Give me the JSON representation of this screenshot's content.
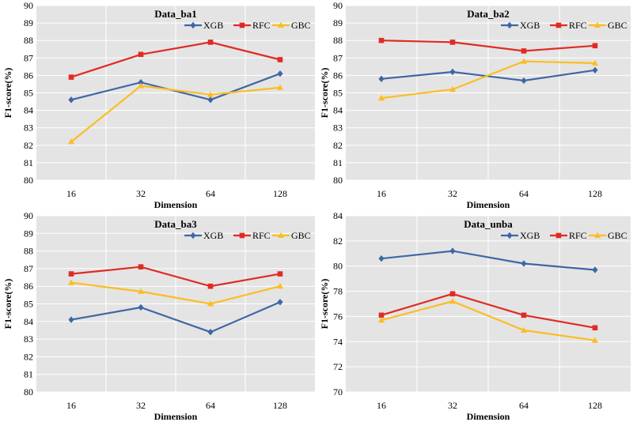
{
  "chart_data": [
    {
      "type": "line",
      "title": "Data_ba1",
      "xlabel": "Dimension",
      "ylabel": "F1-score(%)",
      "categories": [
        "16",
        "32",
        "64",
        "128"
      ],
      "ylim": [
        80,
        90
      ],
      "yticks": [
        "80",
        "81",
        "82",
        "83",
        "84",
        "85",
        "86",
        "87",
        "88",
        "89",
        "90"
      ],
      "grid": true,
      "legend": "top-right",
      "series": [
        {
          "name": "XGB",
          "color": "#3f67a6",
          "marker": "diamond",
          "values": [
            84.6,
            85.6,
            84.6,
            86.1
          ]
        },
        {
          "name": "RFC",
          "color": "#e02b24",
          "marker": "square",
          "values": [
            85.9,
            87.2,
            87.9,
            86.9
          ]
        },
        {
          "name": "GBC",
          "color": "#fbbd22",
          "marker": "triangle",
          "values": [
            82.2,
            85.4,
            84.9,
            85.3
          ]
        }
      ]
    },
    {
      "type": "line",
      "title": "Data_ba2",
      "xlabel": "Dimension",
      "ylabel": "F1-score(%)",
      "categories": [
        "16",
        "32",
        "64",
        "128"
      ],
      "ylim": [
        80,
        90
      ],
      "yticks": [
        "80",
        "81",
        "82",
        "83",
        "84",
        "85",
        "86",
        "87",
        "88",
        "89",
        "90"
      ],
      "grid": true,
      "legend": "top-right",
      "series": [
        {
          "name": "XGB",
          "color": "#3f67a6",
          "marker": "diamond",
          "values": [
            85.8,
            86.2,
            85.7,
            86.3
          ]
        },
        {
          "name": "RFC",
          "color": "#e02b24",
          "marker": "square",
          "values": [
            88.0,
            87.9,
            87.4,
            87.7
          ]
        },
        {
          "name": "GBC",
          "color": "#fbbd22",
          "marker": "triangle",
          "values": [
            84.7,
            85.2,
            86.8,
            86.7
          ]
        }
      ]
    },
    {
      "type": "line",
      "title": "Data_ba3",
      "xlabel": "Dimension",
      "ylabel": "F1-score(%)",
      "categories": [
        "16",
        "32",
        "64",
        "128"
      ],
      "ylim": [
        80,
        90
      ],
      "yticks": [
        "80",
        "81",
        "82",
        "83",
        "84",
        "85",
        "86",
        "87",
        "88",
        "89",
        "90"
      ],
      "grid": true,
      "legend": "top-right",
      "series": [
        {
          "name": "XGB",
          "color": "#3f67a6",
          "marker": "diamond",
          "values": [
            84.1,
            84.8,
            83.4,
            85.1
          ]
        },
        {
          "name": "RFC",
          "color": "#e02b24",
          "marker": "square",
          "values": [
            86.7,
            87.1,
            86.0,
            86.7
          ]
        },
        {
          "name": "GBC",
          "color": "#fbbd22",
          "marker": "triangle",
          "values": [
            86.2,
            85.7,
            85.0,
            86.0
          ]
        }
      ]
    },
    {
      "type": "line",
      "title": "Data_unba",
      "xlabel": "Dimension",
      "ylabel": "F1-score(%)",
      "categories": [
        "16",
        "32",
        "64",
        "128"
      ],
      "ylim": [
        70,
        84
      ],
      "yticks": [
        "70",
        "72",
        "74",
        "76",
        "78",
        "80",
        "82",
        "84"
      ],
      "grid": true,
      "legend": "top-right",
      "series": [
        {
          "name": "XGB",
          "color": "#3f67a6",
          "marker": "diamond",
          "values": [
            80.6,
            81.2,
            80.2,
            79.7
          ]
        },
        {
          "name": "RFC",
          "color": "#e02b24",
          "marker": "square",
          "values": [
            76.1,
            77.8,
            76.1,
            75.1
          ]
        },
        {
          "name": "GBC",
          "color": "#fbbd22",
          "marker": "triangle",
          "values": [
            75.7,
            77.2,
            74.9,
            74.1
          ]
        }
      ]
    }
  ]
}
